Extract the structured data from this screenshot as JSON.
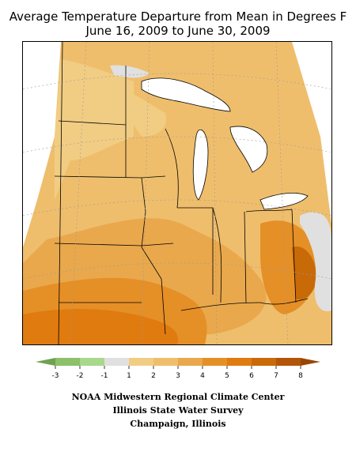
{
  "title_line1": "Average Temperature Departure from Mean in Degrees F",
  "title_line2": "June 16, 2009 to June 30, 2009",
  "legend": {
    "ticks": [
      "-3",
      "-2",
      "-1",
      "1",
      "2",
      "3",
      "4",
      "5",
      "6",
      "7",
      "8"
    ],
    "colors": [
      "#8cc06a",
      "#a8d88c",
      "#e0e0e0",
      "#f1cd83",
      "#efbe6c",
      "#e9a84c",
      "#e58f27",
      "#e07b10",
      "#c86a08",
      "#b35508"
    ],
    "arrow_left": "#6fa150",
    "arrow_right": "#9a4505"
  },
  "credits": [
    "NOAA Midwestern Regional Climate Center",
    "Illinois State Water Survey",
    "Champaign, Illinois"
  ],
  "map_colors": {
    "c1": "#f1cd83",
    "c2": "#efbe6c",
    "c3": "#e9a84c",
    "c4": "#e58f27",
    "c5": "#e07b10",
    "c6": "#c86a08",
    "gray": "#e0e0e0",
    "water": "#ffffff"
  }
}
